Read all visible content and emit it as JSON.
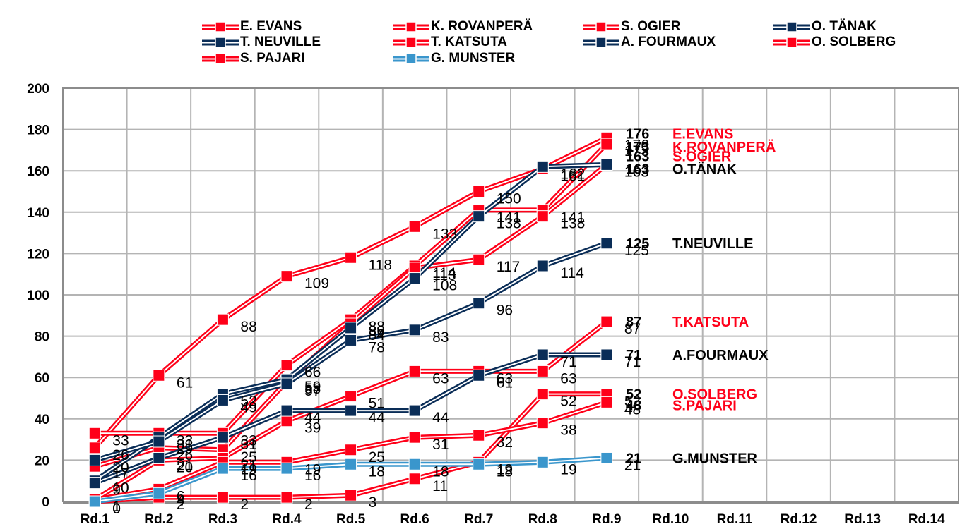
{
  "chart_data": {
    "type": "line",
    "title": "",
    "xlabel": "",
    "ylabel": "",
    "ylim": [
      0,
      200
    ],
    "yticks": [
      0,
      20,
      40,
      60,
      80,
      100,
      120,
      140,
      160,
      180,
      200
    ],
    "grid": true,
    "legend_position": "top",
    "categories": [
      "Rd.1",
      "Rd.2",
      "Rd.3",
      "Rd.4",
      "Rd.5",
      "Rd.6",
      "Rd.7",
      "Rd.8",
      "Rd.9",
      "Rd.10",
      "Rd.11",
      "Rd.12",
      "Rd.13",
      "Rd.14"
    ],
    "series": [
      {
        "name": "E. EVANS",
        "end_label": "E.EVANS",
        "color": "#ff0019",
        "label_color": "#ff0019",
        "values": [
          26,
          61,
          88,
          109,
          118,
          133,
          150,
          161,
          176
        ]
      },
      {
        "name": "K. ROVANPERÄ",
        "end_label": "K.ROVANPERÄ",
        "color": "#ff0019",
        "label_color": "#ff0019",
        "values": [
          33,
          33,
          33,
          66,
          88,
          114,
          141,
          141,
          173
        ]
      },
      {
        "name": "S. OGIER",
        "end_label": "S.OGIER",
        "color": "#ff0019",
        "label_color": "#ff0019",
        "values": [
          17,
          26,
          25,
          58,
          86,
          113,
          117,
          138,
          163
        ]
      },
      {
        "name": "O. TÄNAK",
        "end_label": "O.TÄNAK",
        "color": "#0a2d57",
        "label_color": "#000000",
        "values": [
          10,
          31,
          52,
          59,
          84,
          108,
          138,
          162,
          163
        ]
      },
      {
        "name": "T. NEUVILLE",
        "end_label": "T.NEUVILLE",
        "color": "#0a2d57",
        "label_color": "#000000",
        "values": [
          20,
          29,
          49,
          57,
          78,
          83,
          96,
          114,
          125
        ]
      },
      {
        "name": "T. KATSUTA",
        "end_label": "T.KATSUTA",
        "color": "#ff0019",
        "label_color": "#ff0019",
        "values": [
          1,
          20,
          21,
          39,
          51,
          63,
          63,
          63,
          87
        ]
      },
      {
        "name": "A. FOURMAUX",
        "end_label": "A.FOURMAUX",
        "color": "#0a2d57",
        "label_color": "#000000",
        "values": [
          9,
          21,
          31,
          44,
          44,
          44,
          61,
          71,
          71
        ]
      },
      {
        "name": "O. SOLBERG",
        "end_label": "O.SOLBERG",
        "color": "#ff0019",
        "label_color": "#ff0019",
        "values": [
          0,
          2,
          2,
          2,
          3,
          11,
          19,
          52,
          52
        ]
      },
      {
        "name": "S. PAJARI",
        "end_label": "S.PAJARI",
        "color": "#ff0019",
        "label_color": "#ff0019",
        "values": [
          1,
          6,
          19,
          19,
          25,
          31,
          32,
          38,
          48
        ]
      },
      {
        "name": "G. MUNSTER",
        "end_label": "G.MUNSTER",
        "color": "#3a96cc",
        "label_color": "#000000",
        "values": [
          0,
          4,
          16,
          16,
          18,
          18,
          18,
          19,
          21
        ]
      }
    ],
    "end_label_offsets": [
      0,
      0,
      0,
      0,
      0,
      0,
      0,
      0,
      0,
      0
    ]
  },
  "legend": {
    "items": [
      {
        "label": "E. EVANS",
        "color": "#ff0019"
      },
      {
        "label": "K. ROVANPERÄ",
        "color": "#ff0019"
      },
      {
        "label": "S. OGIER",
        "color": "#ff0019"
      },
      {
        "label": "O. TÄNAK",
        "color": "#0a2d57"
      },
      {
        "label": "T. NEUVILLE",
        "color": "#0a2d57"
      },
      {
        "label": "T. KATSUTA",
        "color": "#ff0019"
      },
      {
        "label": "A. FOURMAUX",
        "color": "#0a2d57"
      },
      {
        "label": "O. SOLBERG",
        "color": "#ff0019"
      },
      {
        "label": "S. PAJARI",
        "color": "#ff0019"
      },
      {
        "label": "G. MUNSTER",
        "color": "#3a96cc"
      }
    ]
  }
}
